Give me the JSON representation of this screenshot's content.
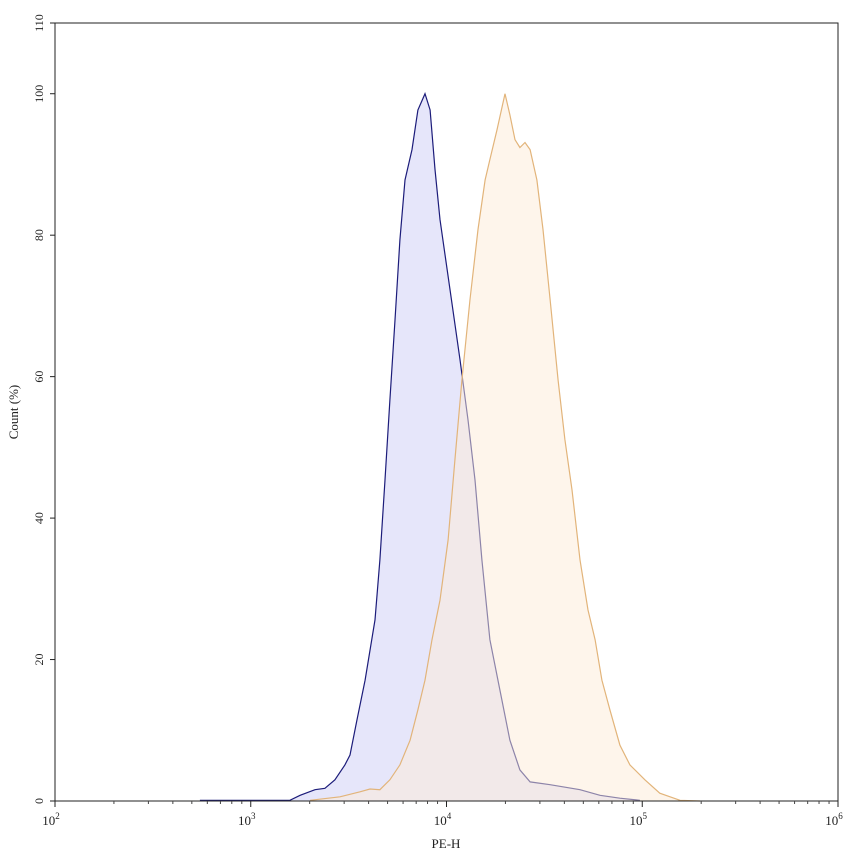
{
  "chart_data": {
    "type": "area",
    "title": "",
    "xlabel": "PE-H",
    "ylabel": "Count (%)",
    "xscale": "log",
    "xlim": [
      100,
      1000000
    ],
    "ylim": [
      0,
      110
    ],
    "x_ticks": [
      {
        "value": 100,
        "base": "10",
        "exp": "2"
      },
      {
        "value": 1000,
        "base": "10",
        "exp": "3"
      },
      {
        "value": 10000,
        "base": "10",
        "exp": "4"
      },
      {
        "value": 100000,
        "base": "10",
        "exp": "5"
      },
      {
        "value": 1000000,
        "base": "10",
        "exp": "6"
      }
    ],
    "y_ticks": [
      "0",
      "20",
      "40",
      "60",
      "80",
      "100",
      "110"
    ],
    "grid": false,
    "series": [
      {
        "color": "#1c1c7a",
        "fill": "rgba(200,200,245,0.45)",
        "x": [
          550,
          1585,
          1786,
          2128,
          2393,
          2692,
          3027,
          3214,
          3491,
          3837,
          4315,
          4571,
          4853,
          5140,
          5458,
          5781,
          6138,
          6668,
          7145,
          7762,
          8241,
          8730,
          9268,
          10420,
          11720,
          12880,
          13990,
          15170,
          16670,
          18750,
          21090,
          23710,
          26730,
          33810,
          48080,
          60810,
          76910,
          97270
        ],
        "y": [
          0.1,
          0.1,
          0.8,
          1.6,
          1.8,
          3,
          5.1,
          6.5,
          11.5,
          17.1,
          25.6,
          34.1,
          45.4,
          56.7,
          68,
          79.3,
          87.8,
          92.1,
          97.7,
          100,
          97.7,
          89.3,
          82.2,
          72.3,
          62.4,
          53.9,
          45.4,
          34.1,
          22.8,
          15.7,
          8.6,
          4.4,
          2.7,
          2.3,
          1.6,
          0.8,
          0.4,
          0.1
        ]
      },
      {
        "color": "#e2b47a",
        "fill": "rgba(253,235,215,0.5)",
        "x": [
          2009,
          2858,
          3614,
          4064,
          4571,
          5140,
          5781,
          6516,
          7145,
          7762,
          8433,
          9268,
          10190,
          11040,
          11990,
          13180,
          14490,
          15740,
          16670,
          18110,
          19900,
          21090,
          22390,
          23710,
          25180,
          26730,
          28970,
          31110,
          33810,
          37150,
          40280,
          43750,
          48080,
          52840,
          57410,
          62230,
          68390,
          76910,
          86500,
          103200,
          123000,
          155900,
          197200
        ],
        "y": [
          0.1,
          0.6,
          1.3,
          1.7,
          1.6,
          3,
          5.1,
          8.6,
          12.9,
          17.1,
          22.8,
          28.4,
          36.9,
          48.2,
          59.5,
          70.9,
          80.8,
          87.8,
          90.7,
          94.9,
          100,
          97,
          93.5,
          92.4,
          93.1,
          92.1,
          87.8,
          80.8,
          70.9,
          59.5,
          51.1,
          44,
          34.1,
          27,
          22.8,
          17.1,
          12.9,
          7.9,
          5.1,
          3,
          1.1,
          0.1,
          0
        ]
      }
    ]
  }
}
